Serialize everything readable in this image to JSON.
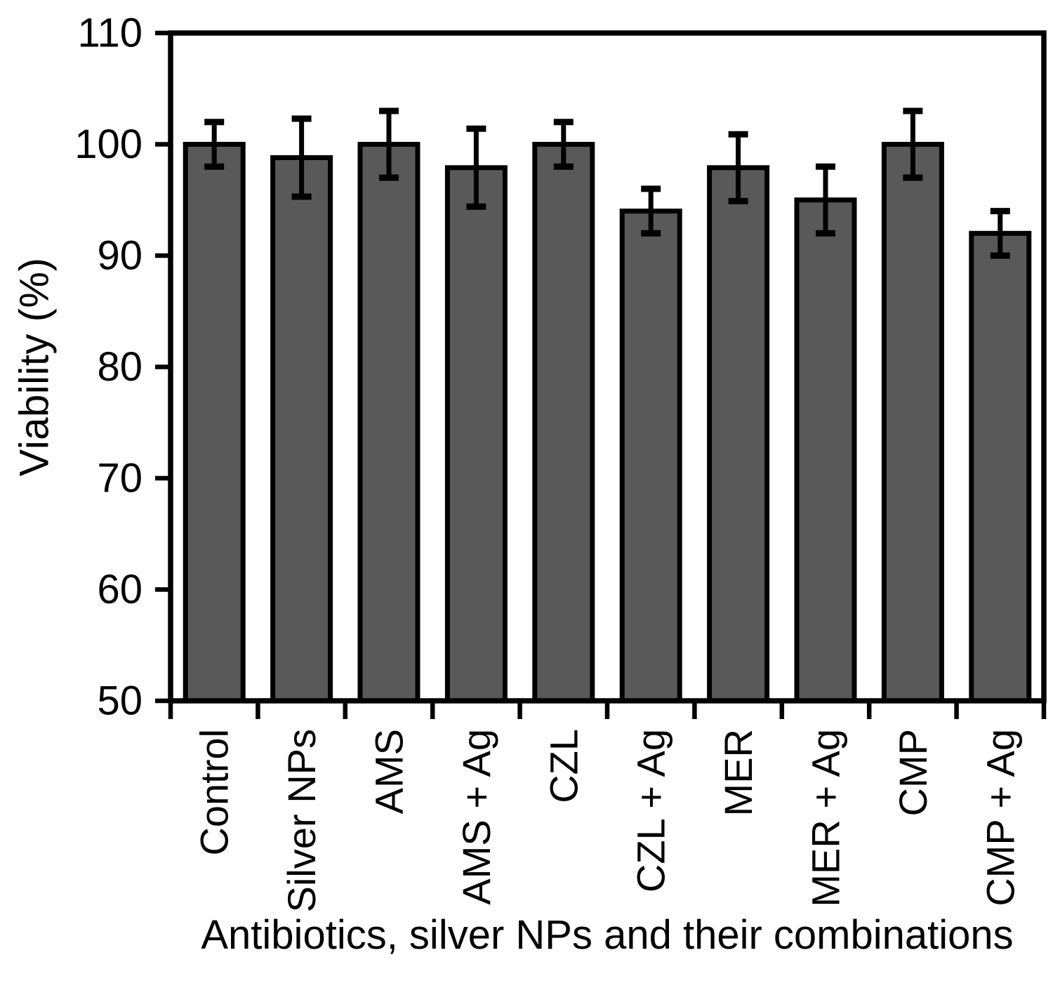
{
  "chart_data": {
    "type": "bar",
    "xlabel": "Antibiotics, silver NPs and their combinations",
    "ylabel": "Viability (%)",
    "categories": [
      "Control",
      "Silver NPs",
      "AMS",
      "AMS + Ag",
      "CZL",
      "CZL + Ag",
      "MER",
      "MER + Ag",
      "CMP",
      "CMP + Ag"
    ],
    "values": [
      100,
      98.8,
      100,
      97.9,
      100,
      94,
      97.9,
      95,
      100,
      92
    ],
    "errors": [
      2,
      3.5,
      3,
      3.5,
      2,
      2,
      3,
      3,
      3,
      2
    ],
    "ylim": [
      50,
      110
    ],
    "yticks": [
      50,
      60,
      70,
      80,
      90,
      100,
      110
    ],
    "bar_color": "#595959",
    "edge_color": "#000000",
    "background_color": "#ffffff",
    "grid": false,
    "legend": "none"
  }
}
